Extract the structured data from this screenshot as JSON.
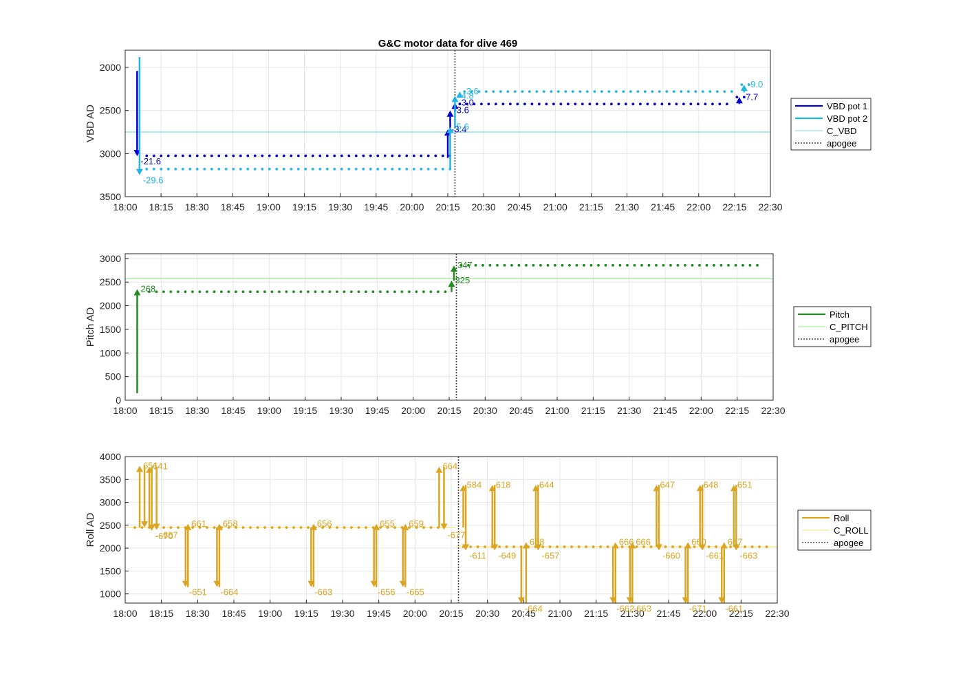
{
  "figure": {
    "title": "G&C motor data for dive 469",
    "x_ticks": [
      "18:00",
      "18:15",
      "18:30",
      "18:45",
      "19:00",
      "19:15",
      "19:30",
      "19:45",
      "20:00",
      "20:15",
      "20:30",
      "20:45",
      "21:00",
      "21:15",
      "21:30",
      "21:45",
      "22:00",
      "22:15",
      "22:30"
    ],
    "apogee": "20:18",
    "colors": {
      "vbd1": "#0000cd",
      "vbd2": "#1fb5e6",
      "c_vbd": "#7fd8ea",
      "pitch": "#228b22",
      "c_pitch": "#90ee90",
      "roll": "#daa520",
      "c_roll": "#f5e67a",
      "apogee": "#404040"
    }
  },
  "chart_data": [
    {
      "type": "line",
      "ylabel": "VBD AD",
      "xlim": [
        "18:00",
        "22:30"
      ],
      "ylim": [
        3500,
        1800
      ],
      "y_reversed": true,
      "yticks": [
        2000,
        2500,
        3000,
        3500
      ],
      "grid": true,
      "legend": {
        "position": "right",
        "entries": [
          "VBD pot 1",
          "VBD pot 2",
          "C_VBD",
          "apogee"
        ]
      },
      "reference_lines": [
        {
          "name": "C_VBD",
          "y": 2750
        }
      ],
      "series": [
        {
          "name": "VBD pot 1",
          "segments": [
            {
              "x": [
                "18:09",
                "20:16"
              ],
              "y": 3025
            },
            {
              "x": [
                "20:20",
                "22:12"
              ],
              "y": 2425
            },
            {
              "x": [
                "22:16",
                "22:20"
              ],
              "y": 2345
            }
          ]
        },
        {
          "name": "VBD pot 2",
          "segments": [
            {
              "x": [
                "18:09",
                "20:16"
              ],
              "y": 3180
            },
            {
              "x": [
                "20:22",
                "22:14"
              ],
              "y": 2280
            },
            {
              "x": [
                "22:18",
                "22:24"
              ],
              "y": 2200
            }
          ]
        }
      ],
      "arrows": [
        {
          "series": "VBD pot 1",
          "x": "18:05",
          "from": 2040,
          "to": 3030,
          "label": "-21.6"
        },
        {
          "series": "VBD pot 2",
          "x": "18:06",
          "from": 1880,
          "to": 3250,
          "label": "-29.6"
        },
        {
          "series": "VBD pot 1",
          "x": "20:15",
          "from": 3050,
          "to": 2720,
          "label": "-3.4"
        },
        {
          "series": "VBD pot 1",
          "x": "20:16",
          "from": 2720,
          "to": 2500,
          "label": "-3.6"
        },
        {
          "series": "VBD pot 1",
          "x": "20:18",
          "from": 2500,
          "to": 2410,
          "label": "-3.0"
        },
        {
          "series": "VBD pot 2",
          "x": "20:16",
          "from": 3180,
          "to": 2690,
          "label": "-5.6"
        },
        {
          "series": "VBD pot 2",
          "x": "20:18",
          "from": 2690,
          "to": 2330,
          "label": "-4.8"
        },
        {
          "series": "VBD pot 2",
          "x": "20:20",
          "from": 2330,
          "to": 2280,
          "label": "-3.6"
        },
        {
          "series": "VBD pot 1",
          "x": "22:17",
          "from": 2425,
          "to": 2345,
          "label": "-7.7"
        },
        {
          "series": "VBD pot 2",
          "x": "22:19",
          "from": 2290,
          "to": 2200,
          "label": "-9.0"
        }
      ]
    },
    {
      "type": "line",
      "ylabel": "Pitch AD",
      "xlim": [
        "18:00",
        "22:30"
      ],
      "ylim": [
        0,
        3100
      ],
      "yticks": [
        0,
        500,
        1000,
        1500,
        2000,
        2500,
        3000
      ],
      "grid": true,
      "legend": {
        "position": "right",
        "entries": [
          "Pitch",
          "C_PITCH",
          "apogee"
        ]
      },
      "reference_lines": [
        {
          "name": "C_PITCH",
          "y": 2570
        }
      ],
      "series": [
        {
          "name": "Pitch",
          "segments": [
            {
              "x": [
                "18:10",
                "20:14"
              ],
              "y": 2295
            },
            {
              "x": [
                "20:20",
                "22:25"
              ],
              "y": 2855
            }
          ]
        }
      ],
      "arrows": [
        {
          "series": "Pitch",
          "x": "18:05",
          "from": 150,
          "to": 2350,
          "label": "268"
        },
        {
          "series": "Pitch",
          "x": "20:16",
          "from": 2290,
          "to": 2530,
          "label": "325"
        },
        {
          "series": "Pitch",
          "x": "20:17",
          "from": 2530,
          "to": 2850,
          "label": "347"
        }
      ]
    },
    {
      "type": "line",
      "ylabel": "Roll AD",
      "xlim": [
        "18:00",
        "22:30"
      ],
      "ylim": [
        800,
        4000
      ],
      "yticks": [
        1000,
        1500,
        2000,
        2500,
        3000,
        3500,
        4000
      ],
      "grid": true,
      "legend": {
        "position": "right",
        "entries": [
          "Roll",
          "C_ROLL",
          "apogee"
        ]
      },
      "reference_lines": [
        {
          "name": "C_ROLL",
          "x": [
            "18:00",
            "20:17"
          ],
          "y": 2450
        },
        {
          "name": "C_ROLL",
          "x": [
            "20:17",
            "22:30"
          ],
          "y": 2030
        }
      ],
      "series": [
        {
          "name": "Roll",
          "segments": [
            {
              "x": [
                "18:04",
                "20:10"
              ],
              "y": 2450
            },
            {
              "x": [
                "20:20",
                "22:26"
              ],
              "y": 2030
            }
          ]
        }
      ],
      "arrows": [
        {
          "x": "18:06",
          "from": 2450,
          "to": 3800,
          "label": "651"
        },
        {
          "x": "18:08",
          "from": 3800,
          "to": 2450,
          "label": ""
        },
        {
          "x": "18:10",
          "from": 2450,
          "to": 3780,
          "label": "641"
        },
        {
          "x": "18:11",
          "from": 3780,
          "to": 2380,
          "label": "-670"
        },
        {
          "x": "18:13",
          "from": 3780,
          "to": 2400,
          "label": "-667"
        },
        {
          "x": "18:25",
          "from": 2450,
          "to": 1150,
          "label": "-651"
        },
        {
          "x": "18:26",
          "from": 1150,
          "to": 2530,
          "label": "661"
        },
        {
          "x": "18:38",
          "from": 2450,
          "to": 1150,
          "label": "-664"
        },
        {
          "x": "18:39",
          "from": 1150,
          "to": 2530,
          "label": "658"
        },
        {
          "x": "19:17",
          "from": 2450,
          "to": 1150,
          "label": "-663"
        },
        {
          "x": "19:18",
          "from": 1150,
          "to": 2530,
          "label": "656"
        },
        {
          "x": "19:43",
          "from": 2450,
          "to": 1150,
          "label": "-656"
        },
        {
          "x": "19:44",
          "from": 1150,
          "to": 2530,
          "label": "655"
        },
        {
          "x": "19:55",
          "from": 2450,
          "to": 1150,
          "label": "-665"
        },
        {
          "x": "19:56",
          "from": 1150,
          "to": 2530,
          "label": "659"
        },
        {
          "x": "20:10",
          "from": 2450,
          "to": 3780,
          "label": "664"
        },
        {
          "x": "20:12",
          "from": 3780,
          "to": 2400,
          "label": "-677"
        },
        {
          "x": "20:20",
          "from": 2450,
          "to": 3380,
          "label": "584"
        },
        {
          "x": "20:21",
          "from": 3380,
          "to": 1950,
          "label": "-611"
        },
        {
          "x": "20:32",
          "from": 2030,
          "to": 3380,
          "label": "618"
        },
        {
          "x": "20:33",
          "from": 3380,
          "to": 1950,
          "label": "-649"
        },
        {
          "x": "20:44",
          "from": 2030,
          "to": 790,
          "label": "-664"
        },
        {
          "x": "20:46",
          "from": 790,
          "to": 2130,
          "label": "658"
        },
        {
          "x": "20:50",
          "from": 2030,
          "to": 3380,
          "label": "644"
        },
        {
          "x": "20:51",
          "from": 3380,
          "to": 1950,
          "label": "-657"
        },
        {
          "x": "21:22",
          "from": 2030,
          "to": 790,
          "label": "-662"
        },
        {
          "x": "21:23",
          "from": 790,
          "to": 2130,
          "label": "666"
        },
        {
          "x": "21:29",
          "from": 2030,
          "to": 790,
          "label": "-663"
        },
        {
          "x": "21:30",
          "from": 790,
          "to": 2130,
          "label": "666"
        },
        {
          "x": "21:40",
          "from": 2030,
          "to": 3380,
          "label": "647"
        },
        {
          "x": "21:41",
          "from": 3380,
          "to": 1950,
          "label": "-660"
        },
        {
          "x": "21:52",
          "from": 2030,
          "to": 790,
          "label": "-671"
        },
        {
          "x": "21:53",
          "from": 790,
          "to": 2130,
          "label": "660"
        },
        {
          "x": "21:58",
          "from": 2030,
          "to": 3380,
          "label": "648"
        },
        {
          "x": "21:59",
          "from": 3380,
          "to": 1950,
          "label": "-661"
        },
        {
          "x": "22:07",
          "from": 2030,
          "to": 790,
          "label": "-661"
        },
        {
          "x": "22:08",
          "from": 790,
          "to": 2130,
          "label": "657"
        },
        {
          "x": "22:12",
          "from": 2030,
          "to": 3380,
          "label": "651"
        },
        {
          "x": "22:13",
          "from": 3380,
          "to": 1950,
          "label": "-663"
        }
      ]
    }
  ]
}
